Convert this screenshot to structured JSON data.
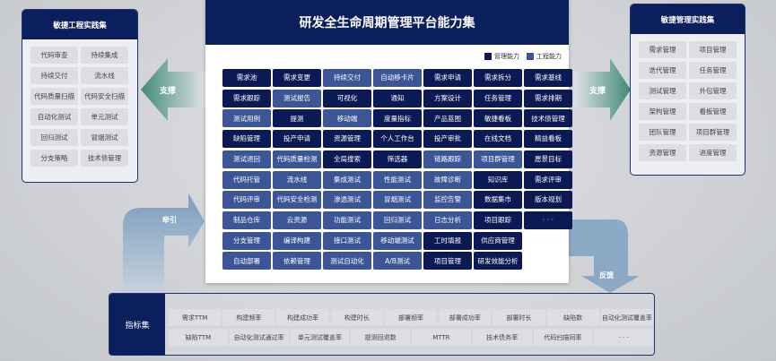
{
  "title": "研发全生命周期管理平台能力集",
  "legend": {
    "management": "管理能力",
    "engineering": "工程能力"
  },
  "colors": {
    "management": "#0b1a55",
    "engineering": "#3b5597",
    "header": "#0b1f5c"
  },
  "grid": [
    [
      [
        "需求池",
        "m"
      ],
      [
        "需求变更",
        "m"
      ],
      [
        "持续交付",
        "e"
      ],
      [
        "自动移卡片",
        "e"
      ],
      [
        "需求申请",
        "m"
      ],
      [
        "需求拆分",
        "m"
      ],
      [
        "需求基线",
        "m"
      ]
    ],
    [
      [
        "需求跟踪",
        "m"
      ],
      [
        "测试报告",
        "e"
      ],
      [
        "可视化",
        "m"
      ],
      [
        "通知",
        "m"
      ],
      [
        "方案设计",
        "m"
      ],
      [
        "任务管理",
        "m"
      ],
      [
        "需求排期",
        "m"
      ]
    ],
    [
      [
        "测试用例",
        "e"
      ],
      [
        "提测",
        "m"
      ],
      [
        "移动端",
        "e"
      ],
      [
        "度量指标",
        "m"
      ],
      [
        "产品蓝图",
        "m"
      ],
      [
        "敏捷看板",
        "m"
      ],
      [
        "技术债管理",
        "m"
      ]
    ],
    [
      [
        "缺陷管理",
        "m"
      ],
      [
        "投产申请",
        "m"
      ],
      [
        "资源管理",
        "m"
      ],
      [
        "个人工作台",
        "m"
      ],
      [
        "投产审批",
        "m"
      ],
      [
        "在线文档",
        "m"
      ],
      [
        "精益看板",
        "m"
      ]
    ],
    [
      [
        "测试退回",
        "e"
      ],
      [
        "代码质量检测",
        "e"
      ],
      [
        "全局搜索",
        "m"
      ],
      [
        "筛选器",
        "m"
      ],
      [
        "链路跟踪",
        "e"
      ],
      [
        "项目群管理",
        "e"
      ],
      [
        "愿景目标",
        "m"
      ]
    ],
    [
      [
        "代码托管",
        "e"
      ],
      [
        "流水线",
        "e"
      ],
      [
        "集成测试",
        "e"
      ],
      [
        "性能测试",
        "e"
      ],
      [
        "故障诊断",
        "e"
      ],
      [
        "知识库",
        "m"
      ],
      [
        "需求评审",
        "m"
      ]
    ],
    [
      [
        "代码评审",
        "e"
      ],
      [
        "代码安全检测",
        "e"
      ],
      [
        "渗透测试",
        "e"
      ],
      [
        "冒烟测试",
        "e"
      ],
      [
        "监控告警",
        "e"
      ],
      [
        "数据集市",
        "m"
      ],
      [
        "版本规划",
        "m"
      ]
    ],
    [
      [
        "制品仓库",
        "e"
      ],
      [
        "云资源",
        "e"
      ],
      [
        "功能测试",
        "e"
      ],
      [
        "回归测试",
        "e"
      ],
      [
        "日志分析",
        "e"
      ],
      [
        "项目跟踪",
        "m"
      ],
      [
        "· · ·",
        "m"
      ]
    ],
    [
      [
        "分支管理",
        "e"
      ],
      [
        "编译构建",
        "e"
      ],
      [
        "接口测试",
        "e"
      ],
      [
        "移动端测试",
        "e"
      ],
      [
        "工时填报",
        "m"
      ],
      [
        "供应商管理",
        "m"
      ]
    ],
    [
      [
        "自动部署",
        "e"
      ],
      [
        "依赖管理",
        "e"
      ],
      [
        "测试自动化",
        "e"
      ],
      [
        "A/B测试",
        "e"
      ],
      [
        "项目管理",
        "m"
      ],
      [
        "研发效能分析",
        "m"
      ]
    ]
  ],
  "left_panel": {
    "title": "敏捷工程实践集",
    "items": [
      "代码审查",
      "持续集成",
      "持续交付",
      "流水线",
      "代码质量扫描",
      "代码安全扫描",
      "自动化测试",
      "单元测试",
      "回归测试",
      "冒烟测试",
      "分支策略",
      "技术债管理"
    ]
  },
  "right_panel": {
    "title": "敏捷管理实践集",
    "items": [
      "需求管理",
      "项目管理",
      "迭代管理",
      "任务管理",
      "测试管理",
      "外包管理",
      "架构管理",
      "看板管理",
      "团队管理",
      "项目群管理",
      "资源管理",
      "进度管理"
    ]
  },
  "arrows": {
    "left": "支撑",
    "right": "支撑",
    "pull": "牵引",
    "feedback": "反馈"
  },
  "metrics": {
    "title": "指标集",
    "rows": [
      [
        "需求TTM",
        "构建频率",
        "构建成功率",
        "构建时长",
        "部署频率",
        "部署成功率",
        "部署时长",
        "缺陷数",
        "自动化测试覆盖率"
      ],
      [
        "缺陷TTM",
        "自动化测试通过率",
        "单元测试覆盖率",
        "提测回退数",
        "MTTR",
        "技术债务率",
        "代码扫描同率",
        "· · ·"
      ]
    ]
  }
}
